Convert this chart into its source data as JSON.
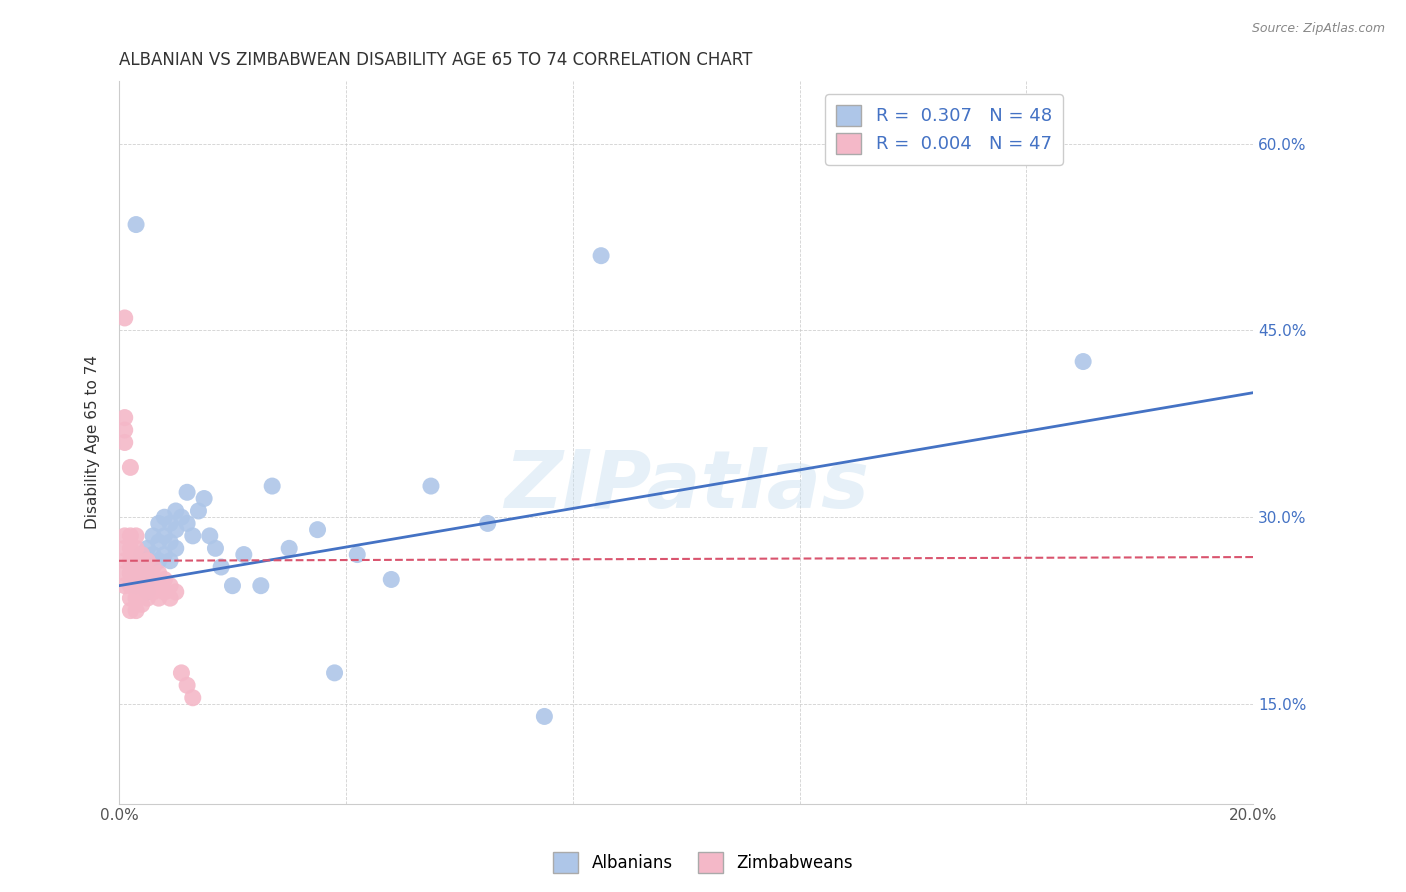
{
  "title": "ALBANIAN VS ZIMBABWEAN DISABILITY AGE 65 TO 74 CORRELATION CHART",
  "source": "Source: ZipAtlas.com",
  "ylabel": "Disability Age 65 to 74",
  "xlabel": "",
  "xlim": [
    0.0,
    0.2
  ],
  "ylim": [
    0.07,
    0.65
  ],
  "ytick_positions": [
    0.15,
    0.3,
    0.45,
    0.6
  ],
  "ytick_labels": [
    "15.0%",
    "30.0%",
    "45.0%",
    "60.0%"
  ],
  "xtick_positions": [
    0.0,
    0.04,
    0.08,
    0.12,
    0.16,
    0.2
  ],
  "xtick_labels": [
    "0.0%",
    "",
    "",
    "",
    "",
    "20.0%"
  ],
  "legend_r1": "R = 0.307",
  "legend_n1": "N = 48",
  "legend_r2": "R = 0.004",
  "legend_n2": "N = 47",
  "albanian_color": "#aec6e8",
  "zimbabwean_color": "#f4b8c8",
  "albanian_line_color": "#4472c4",
  "zimbabwean_line_color": "#d9546e",
  "watermark": "ZIPatlas",
  "albanians_label": "Albanians",
  "zimbabweans_label": "Zimbabweans",
  "albanian_x": [
    0.002,
    0.003,
    0.003,
    0.004,
    0.004,
    0.004,
    0.005,
    0.005,
    0.005,
    0.005,
    0.006,
    0.006,
    0.007,
    0.007,
    0.007,
    0.008,
    0.008,
    0.008,
    0.009,
    0.009,
    0.009,
    0.01,
    0.01,
    0.01,
    0.011,
    0.012,
    0.012,
    0.013,
    0.014,
    0.015,
    0.016,
    0.017,
    0.018,
    0.02,
    0.022,
    0.025,
    0.027,
    0.03,
    0.035,
    0.038,
    0.042,
    0.048,
    0.055,
    0.065,
    0.075,
    0.085,
    0.17,
    0.003
  ],
  "albanian_y": [
    0.255,
    0.26,
    0.245,
    0.27,
    0.255,
    0.245,
    0.275,
    0.26,
    0.25,
    0.24,
    0.285,
    0.27,
    0.295,
    0.28,
    0.265,
    0.3,
    0.285,
    0.27,
    0.295,
    0.28,
    0.265,
    0.305,
    0.29,
    0.275,
    0.3,
    0.32,
    0.295,
    0.285,
    0.305,
    0.315,
    0.285,
    0.275,
    0.26,
    0.245,
    0.27,
    0.245,
    0.325,
    0.275,
    0.29,
    0.175,
    0.27,
    0.25,
    0.325,
    0.295,
    0.14,
    0.51,
    0.425,
    0.535
  ],
  "zimbabwean_x": [
    0.001,
    0.001,
    0.001,
    0.001,
    0.001,
    0.001,
    0.001,
    0.001,
    0.002,
    0.002,
    0.002,
    0.002,
    0.002,
    0.002,
    0.002,
    0.002,
    0.003,
    0.003,
    0.003,
    0.003,
    0.003,
    0.003,
    0.003,
    0.004,
    0.004,
    0.004,
    0.004,
    0.004,
    0.005,
    0.005,
    0.005,
    0.005,
    0.006,
    0.006,
    0.006,
    0.007,
    0.007,
    0.007,
    0.008,
    0.008,
    0.009,
    0.009,
    0.01,
    0.011,
    0.012,
    0.013,
    0.001
  ],
  "zimbabwean_y": [
    0.46,
    0.37,
    0.36,
    0.285,
    0.275,
    0.265,
    0.255,
    0.245,
    0.34,
    0.285,
    0.275,
    0.265,
    0.255,
    0.245,
    0.235,
    0.225,
    0.285,
    0.275,
    0.265,
    0.255,
    0.245,
    0.235,
    0.225,
    0.27,
    0.26,
    0.25,
    0.24,
    0.23,
    0.265,
    0.255,
    0.245,
    0.235,
    0.26,
    0.25,
    0.24,
    0.255,
    0.245,
    0.235,
    0.25,
    0.24,
    0.245,
    0.235,
    0.24,
    0.175,
    0.165,
    0.155,
    0.38
  ],
  "alb_trend_x": [
    0.0,
    0.2
  ],
  "alb_trend_y": [
    0.245,
    0.4
  ],
  "zim_trend_x": [
    0.0,
    0.2
  ],
  "zim_trend_y": [
    0.265,
    0.268
  ]
}
